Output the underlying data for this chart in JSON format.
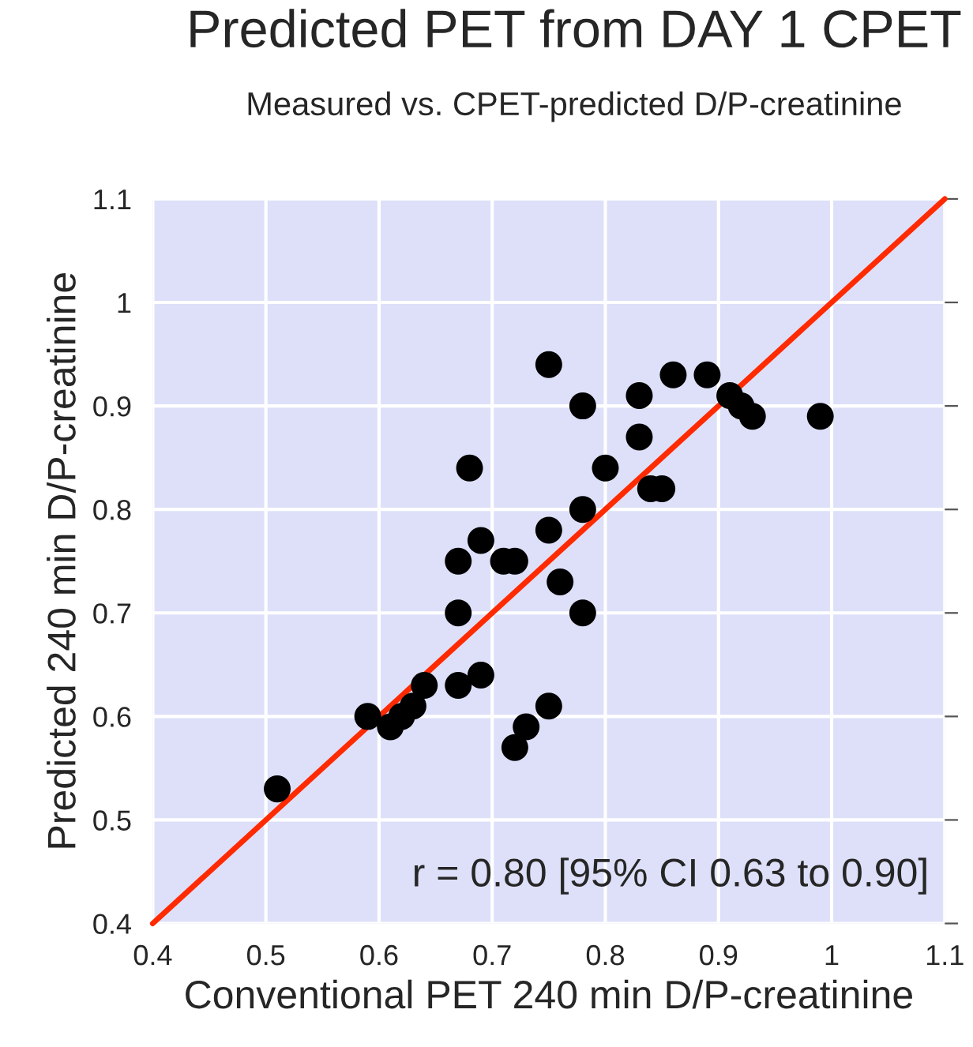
{
  "chart_data": {
    "type": "scatter",
    "title": "Predicted PET from DAY 1 CPET",
    "subtitle": "Measured vs. CPET-predicted D/P-creatinine",
    "xlabel": "Conventional PET 240 min D/P-creatinine",
    "ylabel": "Predicted 240 min D/P-creatinine",
    "series": [
      {
        "color": "#000000",
        "marker": "circle",
        "x": [
          0.75,
          0.68,
          0.69,
          0.67,
          0.71,
          0.72,
          0.75,
          0.67,
          0.64,
          0.67,
          0.69,
          0.63,
          0.62,
          0.61,
          0.59,
          0.73,
          0.75,
          0.72,
          0.51,
          0.78,
          0.83,
          0.86,
          0.89,
          0.91,
          0.92,
          0.93,
          0.99,
          0.83,
          0.8,
          0.84,
          0.85,
          0.78,
          0.76,
          0.78
        ],
        "values": [
          0.94,
          0.84,
          0.77,
          0.75,
          0.75,
          0.75,
          0.78,
          0.7,
          0.63,
          0.63,
          0.64,
          0.61,
          0.6,
          0.59,
          0.6,
          0.59,
          0.61,
          0.57,
          0.53,
          0.9,
          0.91,
          0.93,
          0.93,
          0.91,
          0.9,
          0.89,
          0.89,
          0.87,
          0.84,
          0.82,
          0.82,
          0.8,
          0.73,
          0.7
        ]
      },
      {
        "type": "line",
        "color": "#ff2a00",
        "x": [
          0.4,
          1.1
        ],
        "values": [
          0.4,
          1.1
        ]
      }
    ],
    "xlim": [
      0.4,
      1.1
    ],
    "ylim": [
      0.4,
      1.1
    ],
    "xticks": [
      0.4,
      0.5,
      0.6,
      0.7,
      0.8,
      0.9,
      1,
      1.1
    ],
    "yticks": [
      0.4,
      0.5,
      0.6,
      0.7,
      0.8,
      0.9,
      1,
      1.1
    ],
    "grid": true,
    "annotations": [
      "r = 0.80 [95% CI 0.63 to 0.90]"
    ]
  }
}
